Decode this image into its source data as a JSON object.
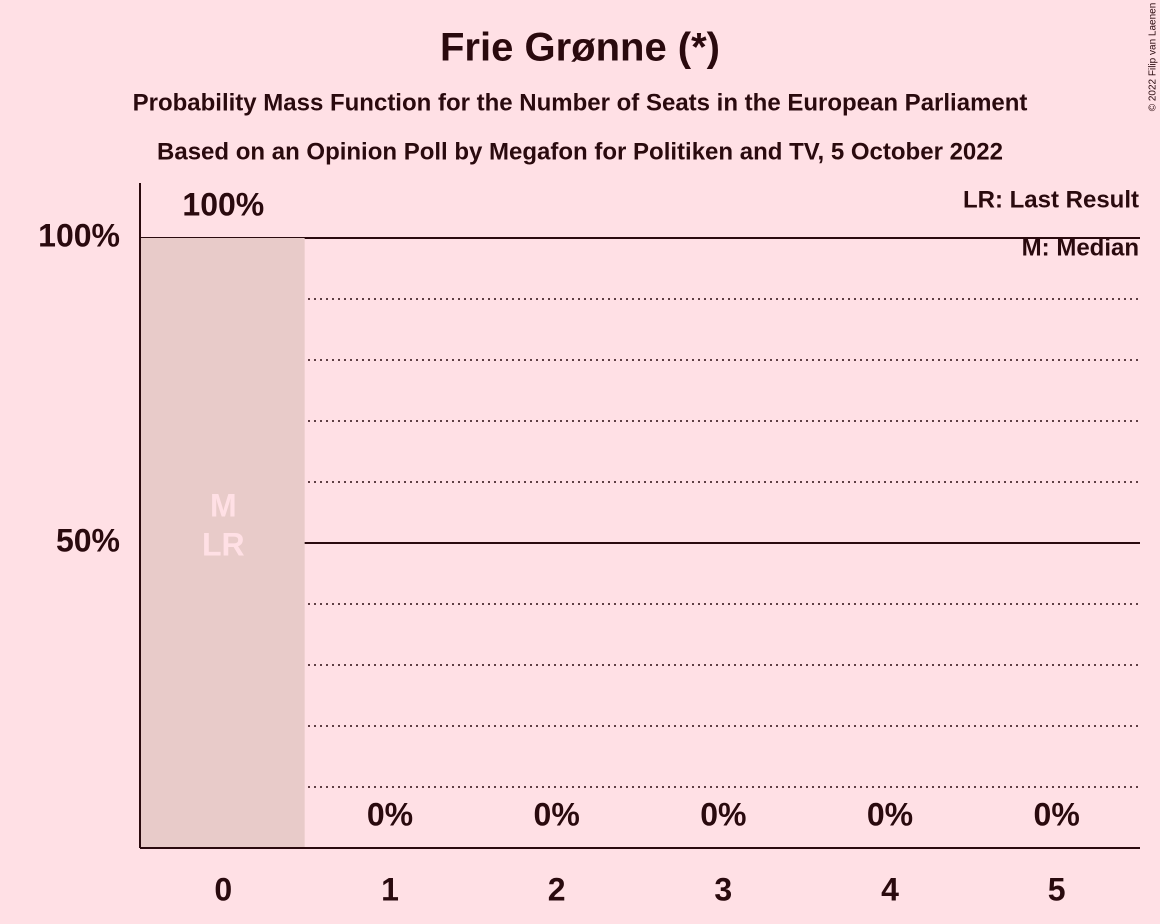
{
  "chart_data": {
    "type": "bar",
    "title": "Frie Grønne (*)",
    "subtitle": "Probability Mass Function for the Number of Seats in the European Parliament",
    "subtitle2": "Based on an Opinion Poll by Megafon for Politiken and TV, 5 October 2022",
    "copyright": "© 2022 Filip van Laenen",
    "categories": [
      0,
      1,
      2,
      3,
      4,
      5
    ],
    "values": [
      100,
      0,
      0,
      0,
      0,
      0
    ],
    "value_labels": [
      "100%",
      "0%",
      "0%",
      "0%",
      "0%",
      "0%"
    ],
    "color": "#e8cbc9",
    "ylim": [
      0,
      100
    ],
    "yticks": [
      {
        "value": 50,
        "label": "50%"
      },
      {
        "value": 100,
        "label": "100%"
      }
    ],
    "minor_gridlines": [
      10,
      20,
      30,
      40,
      60,
      70,
      80,
      90
    ],
    "median": 0,
    "median_label": "M",
    "last_result": 0,
    "last_result_label": "LR",
    "legend": [
      "LR: Last Result",
      "M: Median"
    ]
  }
}
